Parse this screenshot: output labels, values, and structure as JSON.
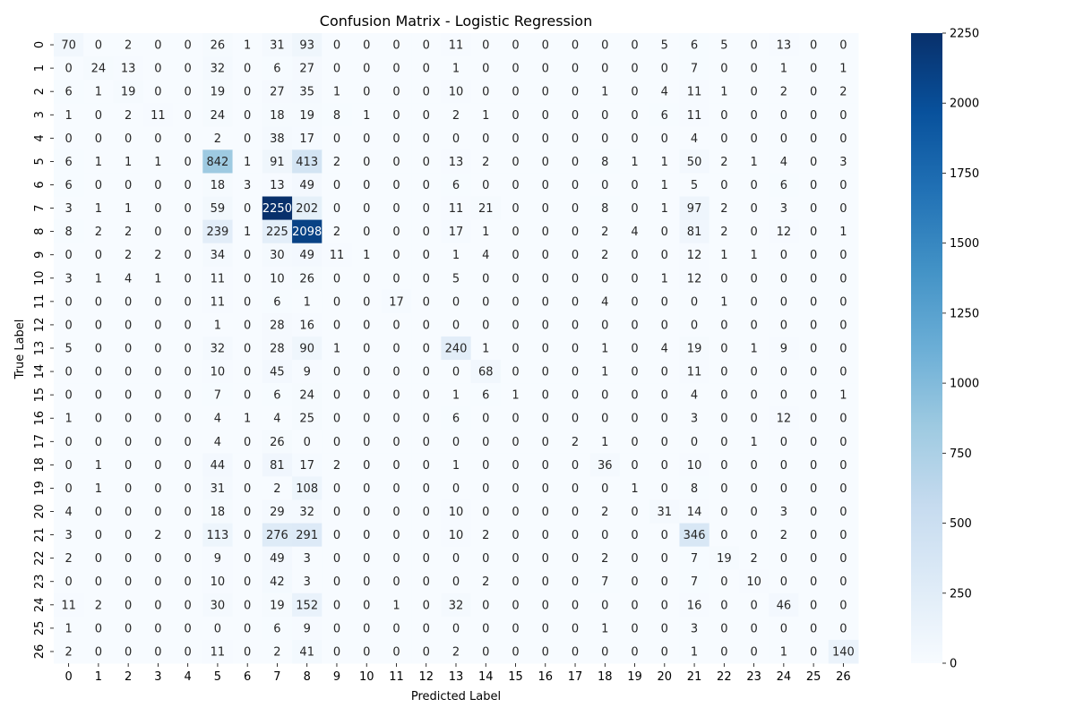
{
  "chart_data": {
    "type": "heatmap",
    "title": "Confusion Matrix - Logistic Regression",
    "xlabel": "Predicted Label",
    "ylabel": "True Label",
    "x_categories": [
      "0",
      "1",
      "2",
      "3",
      "4",
      "5",
      "6",
      "7",
      "8",
      "9",
      "10",
      "11",
      "12",
      "13",
      "14",
      "15",
      "16",
      "17",
      "18",
      "19",
      "20",
      "21",
      "22",
      "23",
      "24",
      "25",
      "26"
    ],
    "y_categories": [
      "0",
      "1",
      "2",
      "3",
      "4",
      "5",
      "6",
      "7",
      "8",
      "9",
      "10",
      "11",
      "12",
      "13",
      "14",
      "15",
      "16",
      "17",
      "18",
      "19",
      "20",
      "21",
      "22",
      "23",
      "24",
      "25",
      "26"
    ],
    "colorbar": {
      "min": 0,
      "max": 2250,
      "ticks": [
        0,
        250,
        500,
        750,
        1000,
        1250,
        1500,
        1750,
        2000,
        2250
      ]
    },
    "colormap": "Blues",
    "colormap_colors": [
      "#f7fbff",
      "#deebf7",
      "#c6dbef",
      "#9ecae1",
      "#6baed6",
      "#4292c6",
      "#2171b5",
      "#08519c",
      "#08306b"
    ],
    "values": [
      [
        70,
        0,
        2,
        0,
        0,
        26,
        1,
        31,
        93,
        0,
        0,
        0,
        0,
        11,
        0,
        0,
        0,
        0,
        0,
        0,
        5,
        6,
        5,
        0,
        13,
        0,
        0
      ],
      [
        0,
        24,
        13,
        0,
        0,
        32,
        0,
        6,
        27,
        0,
        0,
        0,
        0,
        1,
        0,
        0,
        0,
        0,
        0,
        0,
        0,
        7,
        0,
        0,
        1,
        0,
        1
      ],
      [
        6,
        1,
        19,
        0,
        0,
        19,
        0,
        27,
        35,
        1,
        0,
        0,
        0,
        10,
        0,
        0,
        0,
        0,
        1,
        0,
        4,
        11,
        1,
        0,
        2,
        0,
        2
      ],
      [
        1,
        0,
        2,
        11,
        0,
        24,
        0,
        18,
        19,
        8,
        1,
        0,
        0,
        2,
        1,
        0,
        0,
        0,
        0,
        0,
        6,
        11,
        0,
        0,
        0,
        0,
        0
      ],
      [
        0,
        0,
        0,
        0,
        0,
        2,
        0,
        38,
        17,
        0,
        0,
        0,
        0,
        0,
        0,
        0,
        0,
        0,
        0,
        0,
        0,
        4,
        0,
        0,
        0,
        0,
        0
      ],
      [
        6,
        1,
        1,
        1,
        0,
        842,
        1,
        91,
        413,
        2,
        0,
        0,
        0,
        13,
        2,
        0,
        0,
        0,
        8,
        1,
        1,
        50,
        2,
        1,
        4,
        0,
        3
      ],
      [
        6,
        0,
        0,
        0,
        0,
        18,
        3,
        13,
        49,
        0,
        0,
        0,
        0,
        6,
        0,
        0,
        0,
        0,
        0,
        0,
        1,
        5,
        0,
        0,
        6,
        0,
        0
      ],
      [
        3,
        1,
        1,
        0,
        0,
        59,
        0,
        2250,
        202,
        0,
        0,
        0,
        0,
        11,
        21,
        0,
        0,
        0,
        8,
        0,
        1,
        97,
        2,
        0,
        3,
        0,
        0
      ],
      [
        8,
        2,
        2,
        0,
        0,
        239,
        1,
        225,
        2098,
        2,
        0,
        0,
        0,
        17,
        1,
        0,
        0,
        0,
        2,
        4,
        0,
        81,
        2,
        0,
        12,
        0,
        1
      ],
      [
        0,
        0,
        2,
        2,
        0,
        34,
        0,
        30,
        49,
        11,
        1,
        0,
        0,
        1,
        4,
        0,
        0,
        0,
        2,
        0,
        0,
        12,
        1,
        1,
        0,
        0,
        0
      ],
      [
        3,
        1,
        4,
        1,
        0,
        11,
        0,
        10,
        26,
        0,
        0,
        0,
        0,
        5,
        0,
        0,
        0,
        0,
        0,
        0,
        1,
        12,
        0,
        0,
        0,
        0,
        0
      ],
      [
        0,
        0,
        0,
        0,
        0,
        11,
        0,
        6,
        1,
        0,
        0,
        17,
        0,
        0,
        0,
        0,
        0,
        0,
        4,
        0,
        0,
        0,
        1,
        0,
        0,
        0,
        0
      ],
      [
        0,
        0,
        0,
        0,
        0,
        1,
        0,
        28,
        16,
        0,
        0,
        0,
        0,
        0,
        0,
        0,
        0,
        0,
        0,
        0,
        0,
        0,
        0,
        0,
        0,
        0,
        0
      ],
      [
        5,
        0,
        0,
        0,
        0,
        32,
        0,
        28,
        90,
        1,
        0,
        0,
        0,
        240,
        1,
        0,
        0,
        0,
        1,
        0,
        4,
        19,
        0,
        1,
        9,
        0,
        0
      ],
      [
        0,
        0,
        0,
        0,
        0,
        10,
        0,
        45,
        9,
        0,
        0,
        0,
        0,
        0,
        68,
        0,
        0,
        0,
        1,
        0,
        0,
        11,
        0,
        0,
        0,
        0,
        0
      ],
      [
        0,
        0,
        0,
        0,
        0,
        7,
        0,
        6,
        24,
        0,
        0,
        0,
        0,
        1,
        6,
        1,
        0,
        0,
        0,
        0,
        0,
        4,
        0,
        0,
        0,
        0,
        1
      ],
      [
        1,
        0,
        0,
        0,
        0,
        4,
        1,
        4,
        25,
        0,
        0,
        0,
        0,
        6,
        0,
        0,
        0,
        0,
        0,
        0,
        0,
        3,
        0,
        0,
        12,
        0,
        0
      ],
      [
        0,
        0,
        0,
        0,
        0,
        4,
        0,
        26,
        0,
        0,
        0,
        0,
        0,
        0,
        0,
        0,
        0,
        2,
        1,
        0,
        0,
        0,
        0,
        1,
        0,
        0,
        0
      ],
      [
        0,
        1,
        0,
        0,
        0,
        44,
        0,
        81,
        17,
        2,
        0,
        0,
        0,
        1,
        0,
        0,
        0,
        0,
        36,
        0,
        0,
        10,
        0,
        0,
        0,
        0,
        0
      ],
      [
        0,
        1,
        0,
        0,
        0,
        31,
        0,
        2,
        108,
        0,
        0,
        0,
        0,
        0,
        0,
        0,
        0,
        0,
        0,
        1,
        0,
        8,
        0,
        0,
        0,
        0,
        0
      ],
      [
        4,
        0,
        0,
        0,
        0,
        18,
        0,
        29,
        32,
        0,
        0,
        0,
        0,
        10,
        0,
        0,
        0,
        0,
        2,
        0,
        31,
        14,
        0,
        0,
        3,
        0,
        0
      ],
      [
        3,
        0,
        0,
        2,
        0,
        113,
        0,
        276,
        291,
        0,
        0,
        0,
        0,
        10,
        2,
        0,
        0,
        0,
        0,
        0,
        0,
        346,
        0,
        0,
        2,
        0,
        0
      ],
      [
        2,
        0,
        0,
        0,
        0,
        9,
        0,
        49,
        3,
        0,
        0,
        0,
        0,
        0,
        0,
        0,
        0,
        0,
        2,
        0,
        0,
        7,
        19,
        2,
        0,
        0,
        0
      ],
      [
        0,
        0,
        0,
        0,
        0,
        10,
        0,
        42,
        3,
        0,
        0,
        0,
        0,
        0,
        2,
        0,
        0,
        0,
        7,
        0,
        0,
        7,
        0,
        10,
        0,
        0,
        0
      ],
      [
        11,
        2,
        0,
        0,
        0,
        30,
        0,
        19,
        152,
        0,
        0,
        1,
        0,
        32,
        0,
        0,
        0,
        0,
        0,
        0,
        0,
        16,
        0,
        0,
        46,
        0,
        0
      ],
      [
        1,
        0,
        0,
        0,
        0,
        0,
        0,
        6,
        9,
        0,
        0,
        0,
        0,
        0,
        0,
        0,
        0,
        0,
        1,
        0,
        0,
        3,
        0,
        0,
        0,
        0,
        0
      ],
      [
        2,
        0,
        0,
        0,
        0,
        11,
        0,
        2,
        41,
        0,
        0,
        0,
        0,
        2,
        0,
        0,
        0,
        0,
        0,
        0,
        0,
        1,
        0,
        0,
        1,
        0,
        140
      ]
    ]
  }
}
